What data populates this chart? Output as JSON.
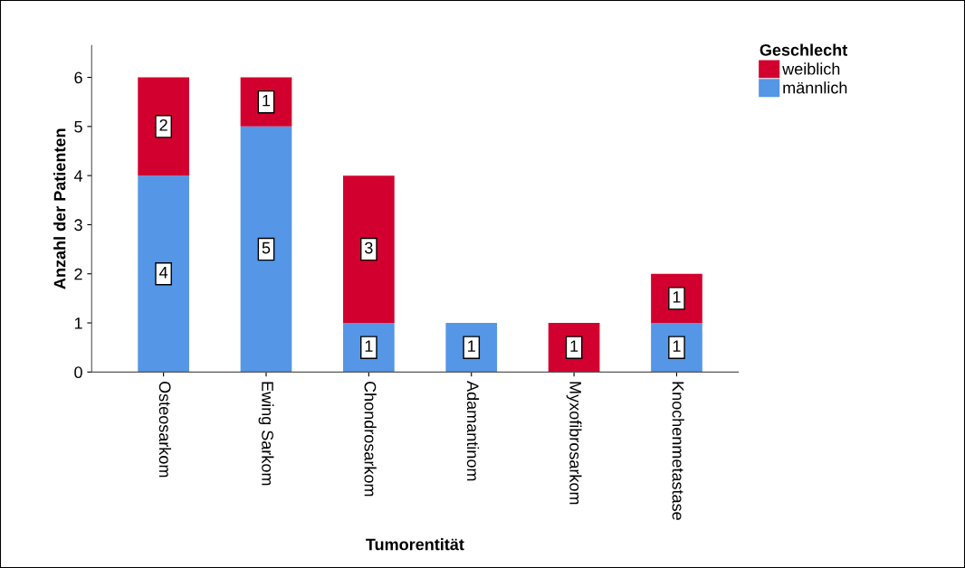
{
  "chart_data": {
    "type": "bar",
    "stacked": true,
    "xlabel": "Tumorentität",
    "ylabel": "Anzahl der Patienten",
    "legend_title": "Geschlecht",
    "legend": "top right",
    "categories": [
      "Osteosarkom",
      "Ewing Sarkom",
      "Chondrosarkom",
      "Adamantinom",
      "Myxofibrosarkom",
      "Knochenmetastase"
    ],
    "series": [
      {
        "name": "männlich",
        "color": "#5596e6",
        "values": [
          4,
          5,
          1,
          1,
          null,
          1
        ]
      },
      {
        "name": "weiblich",
        "color": "#d2002e",
        "values": [
          2,
          1,
          3,
          null,
          1,
          1
        ]
      }
    ],
    "ylim": [
      0,
      6.65
    ],
    "yticks": [
      0,
      1,
      2,
      3,
      4,
      5,
      6
    ],
    "grid": false,
    "data_labels": true
  }
}
